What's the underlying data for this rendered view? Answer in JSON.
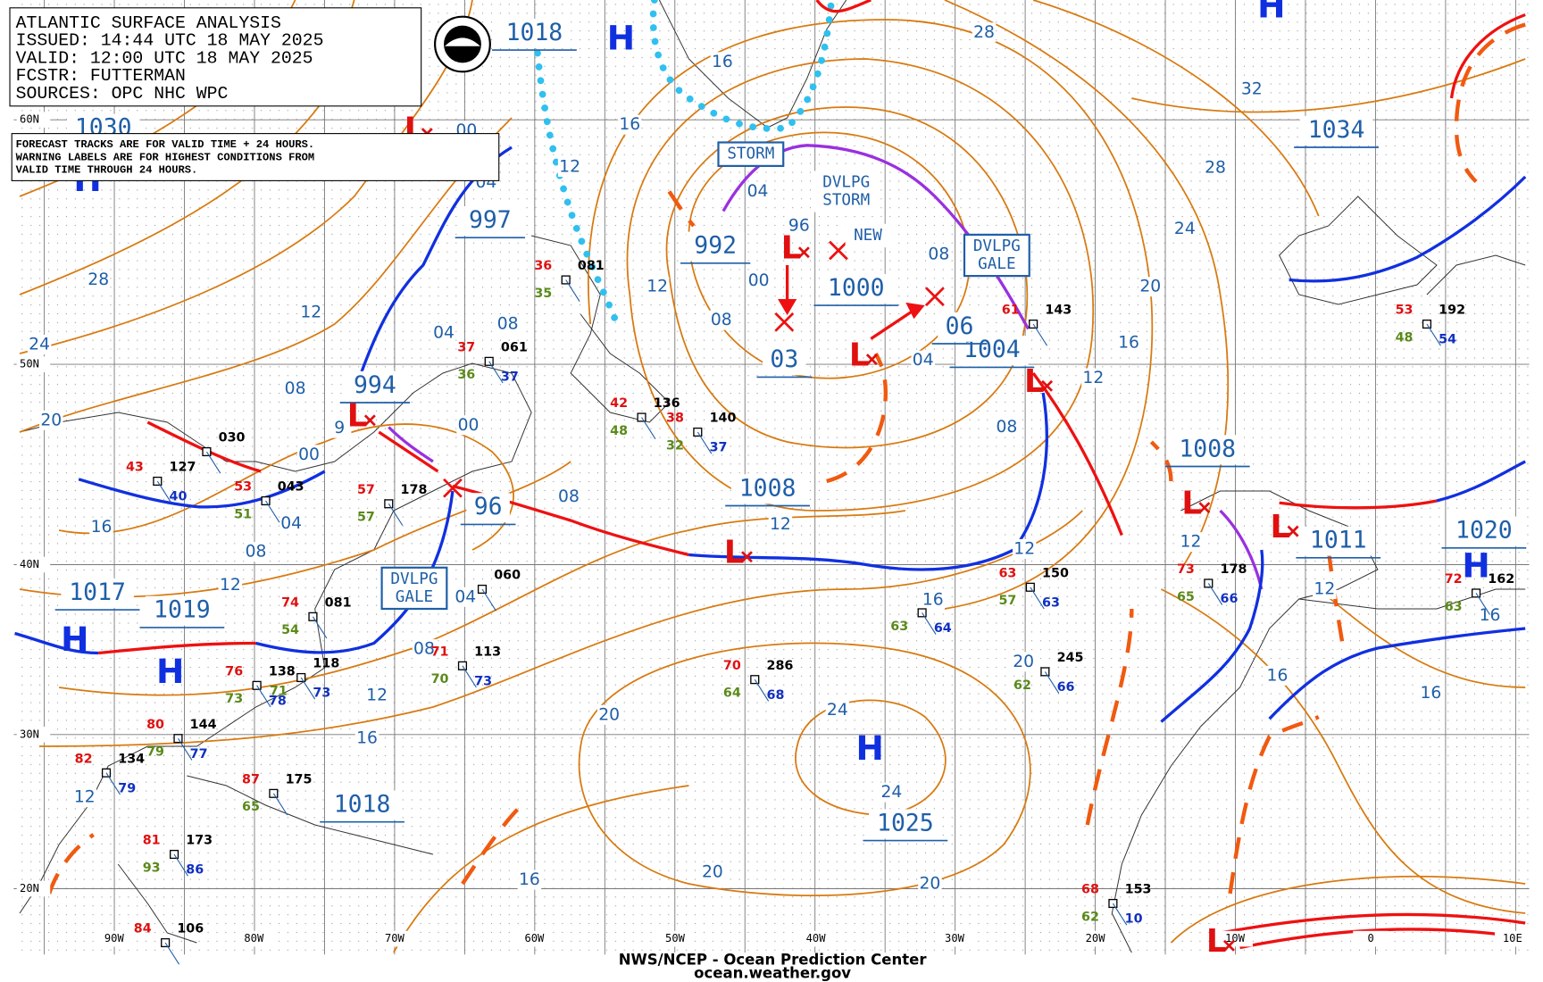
{
  "header": {
    "lines": [
      "ATLANTIC SURFACE ANALYSIS",
      "ISSUED: 14:44 UTC 18 MAY 2025",
      "VALID:  12:00 UTC 18 MAY 2025",
      "FCSTR:  FUTTERMAN",
      "SOURCES: OPC NHC WPC"
    ]
  },
  "note": [
    "FORECAST TRACKS ARE FOR VALID TIME + 24 HOURS.",
    "WARNING LABELS ARE FOR HIGHEST CONDITIONS FROM",
    "VALID TIME THROUGH 24 HOURS."
  ],
  "footer": [
    "NWS/NCEP - Ocean Prediction Center",
    "ocean.weather.gov"
  ],
  "latitude_labels": [
    "60N",
    "50N",
    "40N",
    "30N",
    "20N"
  ],
  "longitude_labels": [
    "90W",
    "80W",
    "70W",
    "60W",
    "50W",
    "40W",
    "30W",
    "20W",
    "10W",
    "0",
    "10E"
  ],
  "pressure_labels": [
    "1018",
    "1030",
    "997",
    "994",
    "992",
    "1000",
    "03",
    "1004",
    "1008",
    "96",
    "1017",
    "1019",
    "1018",
    "1025",
    "1034",
    "1008",
    "1011",
    "1020",
    "06"
  ],
  "highs": [
    "H",
    "H",
    "H",
    "H",
    "H",
    "H",
    "H"
  ],
  "lows": [
    "L",
    "L",
    "L",
    "L",
    "L",
    "L",
    "L",
    "L",
    "L"
  ],
  "isobar_labels": [
    "28",
    "16",
    "16",
    "12",
    "04",
    "96",
    "00",
    "08",
    "12",
    "04",
    "08",
    "00",
    "08",
    "12",
    "04",
    "08",
    "08",
    "12",
    "16",
    "20",
    "24",
    "28",
    "32",
    "12",
    "12",
    "16",
    "12",
    "16",
    "16",
    "16",
    "20",
    "24",
    "24",
    "20",
    "20",
    "20",
    "16",
    "12",
    "16",
    "12",
    "08",
    "04",
    "12",
    "08",
    "04",
    "16",
    "00",
    "08",
    "20",
    "24",
    "28",
    "12",
    "9",
    "00",
    "04"
  ],
  "warning_labels": [
    [
      "STORM"
    ],
    [
      "DVLPG",
      "STORM"
    ],
    [
      "NEW"
    ],
    [
      "DVLPG",
      "GALE"
    ],
    [
      "DVLPG",
      "GALE"
    ]
  ],
  "stations": [
    {
      "temperature": "36",
      "pressure": "081",
      "dewpoint": "35"
    },
    {
      "temperature": "37",
      "pressure": "061",
      "dewpoint": "36",
      "other": "37"
    },
    {
      "temperature": "42",
      "pressure": "136",
      "dewpoint": "48"
    },
    {
      "temperature": "38",
      "pressure": "140",
      "dewpoint": "32",
      "other": "37"
    },
    {
      "temperature": "43",
      "pressure": "127",
      "other": "40"
    },
    {
      "temperature": "53",
      "pressure": "043",
      "dewpoint": "51"
    },
    {
      "temperature": "57",
      "pressure": "178",
      "dewpoint": "57"
    },
    {
      "pressure": "030"
    },
    {
      "temperature": "61",
      "pressure": "143"
    },
    {
      "temperature": "53",
      "pressure": "192",
      "dewpoint": "48",
      "other": "54"
    },
    {
      "pressure": "060"
    },
    {
      "temperature": "74",
      "pressure": "081",
      "dewpoint": "54"
    },
    {
      "temperature": "71",
      "pressure": "113",
      "dewpoint": "70",
      "other": "73"
    },
    {
      "temperature": "70",
      "pressure": "286",
      "dewpoint": "64",
      "other": "68"
    },
    {
      "temperature": "63",
      "pressure": "150",
      "dewpoint": "57",
      "other": "63"
    },
    {
      "pressure": "245",
      "dewpoint": "62",
      "other": "66"
    },
    {
      "temperature": "73",
      "pressure": "178",
      "dewpoint": "65",
      "other": "66"
    },
    {
      "temperature": "76",
      "pressure": "138",
      "dewpoint": "73",
      "other": "78"
    },
    {
      "pressure": "118",
      "dewpoint": "71",
      "other": "73"
    },
    {
      "temperature": "80",
      "pressure": "144",
      "dewpoint": "79",
      "other": "77"
    },
    {
      "temperature": "82",
      "pressure": "134",
      "other": "79"
    },
    {
      "temperature": "87",
      "pressure": "175",
      "dewpoint": "65"
    },
    {
      "temperature": "81",
      "pressure": "173",
      "dewpoint": "93",
      "other": "86"
    },
    {
      "temperature": "84",
      "pressure": "106"
    },
    {
      "temperature": "68",
      "pressure": "153",
      "dewpoint": "62",
      "other": "10"
    },
    {
      "temperature": "72",
      "pressure": "162",
      "dewpoint": "63"
    },
    {
      "dewpoint": "63",
      "other": "64"
    }
  ]
}
